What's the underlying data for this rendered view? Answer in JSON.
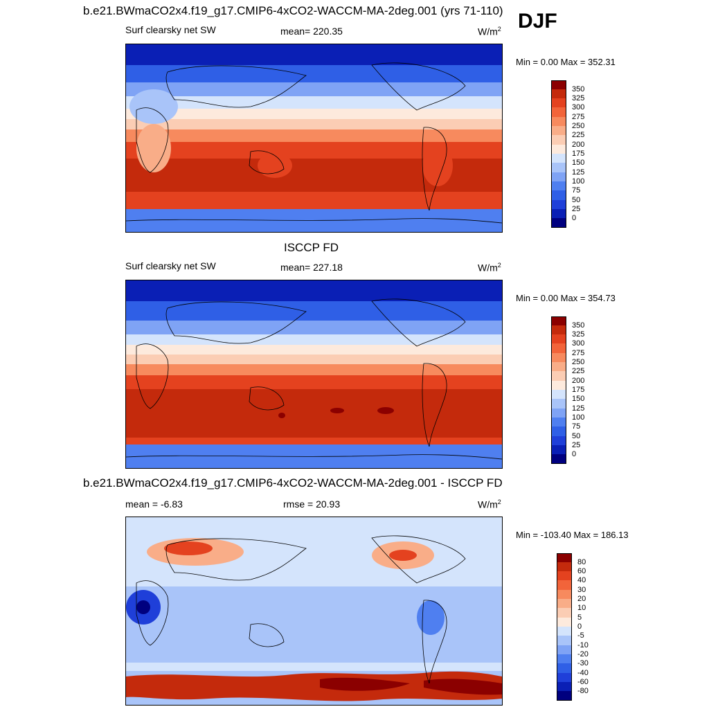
{
  "season": "DJF",
  "panel1": {
    "title": "b.e21.BWmaCO2x4.f19_g17.CMIP6-4xCO2-WACCM-MA-2deg.001 (yrs 71-110)",
    "left_label": "Surf clearsky net SW",
    "mean_label": "mean= 220.35",
    "units": "W/m",
    "units_sup": "2",
    "minmax": "Min =   0.00 Max = 352.31"
  },
  "panel2": {
    "title": "ISCCP FD",
    "left_label": "Surf clearsky net SW",
    "mean_label": "mean= 227.18",
    "units": "W/m",
    "units_sup": "2",
    "minmax": "Min =   0.00 Max = 354.73"
  },
  "panel3": {
    "title": "b.e21.BWmaCO2x4.f19_g17.CMIP6-4xCO2-WACCM-MA-2deg.001 - ISCCP FD",
    "mean_label": "mean =  -6.83",
    "rmse_label": "rmse =  20.93",
    "units": "W/m",
    "units_sup": "2",
    "minmax": "Min = -103.40 Max = 186.13"
  },
  "colors": {
    "field_ramp": [
      "#00007f",
      "#0a1fb5",
      "#1f3fd9",
      "#2f5fe6",
      "#4f7ff0",
      "#7fa3f5",
      "#a9c4f9",
      "#d4e4fc",
      "#fdeadd",
      "#fbcdb4",
      "#f9ad88",
      "#f78a5e",
      "#f2643a",
      "#e4421f",
      "#c42a0c",
      "#8b0000"
    ],
    "diff_ramp": [
      "#00007f",
      "#0a1fb5",
      "#1f3fd9",
      "#2f5fe6",
      "#4f7ff0",
      "#7fa3f5",
      "#a9c4f9",
      "#d4e4fc",
      "#fdeadd",
      "#fbcdb4",
      "#f9ad88",
      "#f78a5e",
      "#f2643a",
      "#e4421f",
      "#c42a0c",
      "#8b0000"
    ]
  },
  "colorbar_field": {
    "levels": [
      "350",
      "325",
      "300",
      "275",
      "250",
      "225",
      "200",
      "175",
      "150",
      "125",
      "100",
      "75",
      "50",
      "25",
      "0"
    ]
  },
  "colorbar_diff": {
    "levels": [
      "80",
      "60",
      "40",
      "30",
      "20",
      "10",
      "5",
      "0",
      "-5",
      "-10",
      "-20",
      "-30",
      "-40",
      "-60",
      "-80"
    ]
  }
}
